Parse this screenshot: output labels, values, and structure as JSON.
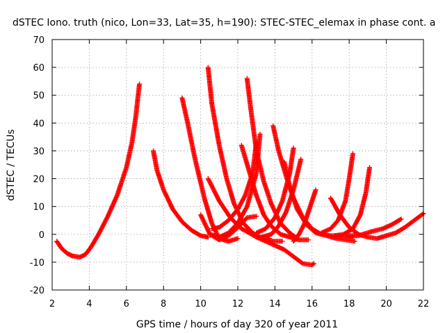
{
  "chart_data": {
    "type": "scatter",
    "title": "dSTEC Iono. truth (nico, Lon=33, Lat=35, h=190): STEC-STEC_elemax in phase cont. a",
    "xlabel": "GPS time / hours of day 320 of year 2011",
    "ylabel": "dSTEC  / TECUs",
    "xlim": [
      2,
      22
    ],
    "ylim": [
      -20,
      70
    ],
    "xticks": [
      "2",
      "4",
      "6",
      "8",
      "10",
      "12",
      "14",
      "16",
      "18",
      "20",
      "22"
    ],
    "yticks": [
      "-20",
      "-10",
      "0",
      "10",
      "20",
      "30",
      "40",
      "50",
      "60",
      "70"
    ],
    "grid": true,
    "marker": "+",
    "color": "#ff0000",
    "series": [
      {
        "x": [
          2.25,
          2.5,
          2.8,
          3.1,
          3.5,
          3.8,
          4.1,
          4.5,
          5.0,
          5.5,
          6.0,
          6.3,
          6.5,
          6.7
        ],
        "y": [
          -2.5,
          -5,
          -6.8,
          -7.8,
          -8.2,
          -7.2,
          -4.5,
          0,
          6.5,
          14,
          24,
          33,
          42,
          54
        ]
      },
      {
        "x": [
          7.45,
          7.65,
          8.0,
          8.5,
          9.0,
          9.5,
          10.0,
          10.4
        ],
        "y": [
          30,
          23,
          16,
          9,
          4.5,
          1.5,
          -0.5,
          -1
        ]
      },
      {
        "x": [
          9.0,
          9.3,
          9.7,
          10.2,
          10.6,
          11.0,
          11.5,
          12.0
        ],
        "y": [
          49,
          40,
          27,
          13,
          4,
          -1.5,
          -2.5,
          -1.5
        ]
      },
      {
        "x": [
          10.4,
          10.6,
          11.0,
          11.4,
          11.8,
          12.3,
          12.8,
          13.2,
          13.7
        ],
        "y": [
          60,
          47,
          32,
          20,
          11,
          4,
          0.5,
          -1,
          -1.5
        ]
      },
      {
        "x": [
          10.0,
          10.5,
          11.0,
          11.5,
          12.0,
          12.5,
          13.0
        ],
        "y": [
          7,
          0,
          -2,
          -0.5,
          2.5,
          6,
          6.5
        ]
      },
      {
        "x": [
          10.4,
          11.0,
          11.6,
          12.2,
          12.8,
          13.3,
          13.9,
          14.4
        ],
        "y": [
          20,
          12,
          6,
          2,
          0,
          -1.5,
          -2.5,
          -2.5
        ]
      },
      {
        "x": [
          10.6,
          11.0,
          11.5,
          12.0,
          12.4,
          12.8,
          13.0
        ],
        "y": [
          2,
          2.5,
          5,
          9,
          14,
          22,
          33
        ]
      },
      {
        "x": [
          10.5,
          11.0,
          11.5,
          12.0,
          12.5,
          13.0,
          13.2
        ],
        "y": [
          0,
          -1,
          0.5,
          4,
          10,
          22,
          36
        ]
      },
      {
        "x": [
          12.5,
          12.7,
          13.0,
          13.4,
          13.8,
          14.3,
          14.8,
          15.2
        ],
        "y": [
          56,
          45,
          30,
          19,
          11,
          4,
          0.5,
          -1.5
        ]
      },
      {
        "x": [
          12.2,
          12.6,
          13.0,
          13.4,
          13.8,
          14.3,
          14.8,
          15.3,
          15.8
        ],
        "y": [
          32,
          23,
          14,
          7,
          3,
          0,
          -1,
          -2,
          -2
        ]
      },
      {
        "x": [
          12.5,
          13.0,
          13.5,
          14.0,
          14.5,
          15.0,
          15.5,
          16.0,
          16.1
        ],
        "y": [
          1,
          -1,
          -2.5,
          -4,
          -5.5,
          -8,
          -10.5,
          -11,
          -10.5
        ]
      },
      {
        "x": [
          13.9,
          14.2,
          14.6,
          15.0,
          15.5,
          16.0,
          16.5,
          17.0,
          17.5,
          18.2
        ],
        "y": [
          39,
          30,
          21,
          13,
          6,
          2,
          0,
          -0.5,
          -0.5,
          -1
        ]
      },
      {
        "x": [
          13.0,
          13.5,
          14.0,
          14.4,
          14.8,
          15.0
        ],
        "y": [
          0.5,
          2,
          6,
          12,
          22,
          31
        ]
      },
      {
        "x": [
          13.3,
          13.8,
          14.2,
          14.6,
          15.0,
          15.4
        ],
        "y": [
          -1,
          0,
          3,
          8,
          16,
          27
        ]
      },
      {
        "x": [
          14.5,
          14.8,
          15.2,
          15.7,
          16.2,
          16.8,
          17.3,
          17.8,
          18.3
        ],
        "y": [
          26,
          17,
          9,
          3.5,
          0.5,
          -0.5,
          -1.5,
          -2,
          -2.5
        ]
      },
      {
        "x": [
          15.0,
          15.3,
          15.6,
          15.9,
          16.2
        ],
        "y": [
          -2.5,
          0,
          4,
          10,
          16
        ]
      },
      {
        "x": [
          16.5,
          17.0,
          17.4,
          17.8,
          18.0,
          18.2
        ],
        "y": [
          0.5,
          2,
          5,
          12,
          20,
          29
        ]
      },
      {
        "x": [
          17.0,
          17.5,
          18.0,
          18.5,
          19.0,
          19.5,
          20.0
        ],
        "y": [
          13,
          7,
          2.5,
          0,
          -1,
          -1.5,
          -0.5
        ]
      },
      {
        "x": [
          17.2,
          17.7,
          18.2,
          18.6,
          18.9,
          19.1
        ],
        "y": [
          -0.5,
          0,
          2,
          7,
          15,
          24
        ]
      },
      {
        "x": [
          17.8,
          18.5,
          19.2,
          19.8,
          20.3,
          20.8
        ],
        "y": [
          -0.5,
          -0.5,
          1,
          2,
          3.5,
          5.5
        ]
      },
      {
        "x": [
          20.0,
          20.5,
          21.0,
          21.5,
          22.0
        ],
        "y": [
          -0.5,
          0.5,
          2.5,
          5,
          7.5
        ]
      }
    ]
  }
}
